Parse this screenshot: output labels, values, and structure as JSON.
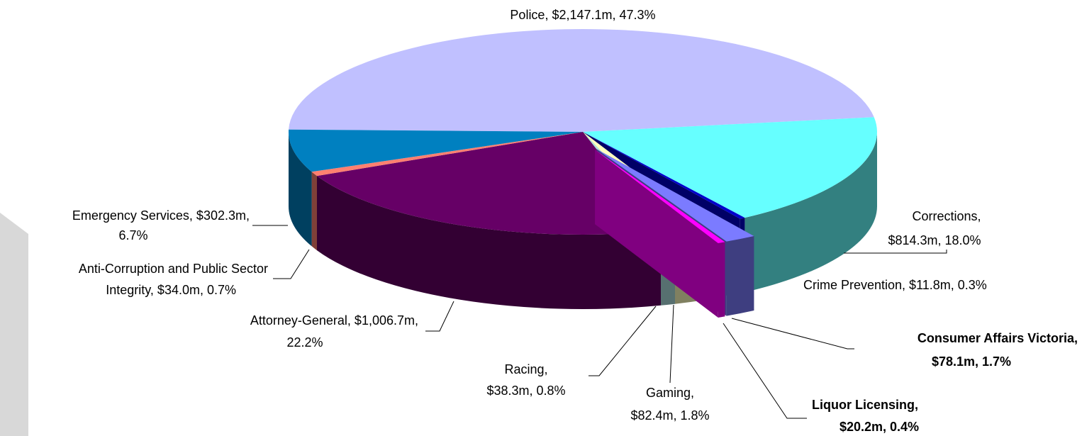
{
  "chart_data": {
    "type": "pie",
    "values": [
      47.3,
      18.0,
      0.3,
      1.7,
      0.4,
      1.8,
      0.8,
      22.2,
      0.7,
      6.7
    ],
    "value_labels": [
      [
        "Police, $2,147.1m, 47.3%"
      ],
      [
        "Corrections,",
        "$814.3m, 18.0%"
      ],
      [
        "Crime Prevention, $11.8m, 0.3%"
      ],
      [
        "Consumer Affairs Victoria,",
        "$78.1m, 1.7%"
      ],
      [
        "Liquor Licensing,",
        "$20.2m, 0.4%"
      ],
      [
        "Gaming,",
        "$82.4m, 1.8%"
      ],
      [
        "Racing,",
        "$38.3m, 0.8%"
      ],
      [
        "Attorney-General, $1,006.7m,",
        "22.2%"
      ],
      [
        "Anti-Corruption and Public Sector",
        "Integrity, $34.0m, 0.7%"
      ],
      [
        "Emergency Services, $302.3m,",
        "6.7%"
      ]
    ],
    "colors": [
      "#c0c0ff",
      "#66ffff",
      "#0000cc",
      "#7b7bff",
      "#ff00ff",
      "#ffffc0",
      "#aedfe0",
      "#660066",
      "#ff8070",
      "#0080c0"
    ],
    "exploded": [
      false,
      false,
      false,
      true,
      true,
      false,
      false,
      false,
      false,
      false
    ],
    "bold_labels": [
      false,
      false,
      false,
      true,
      true,
      false,
      false,
      false,
      false,
      false
    ]
  }
}
